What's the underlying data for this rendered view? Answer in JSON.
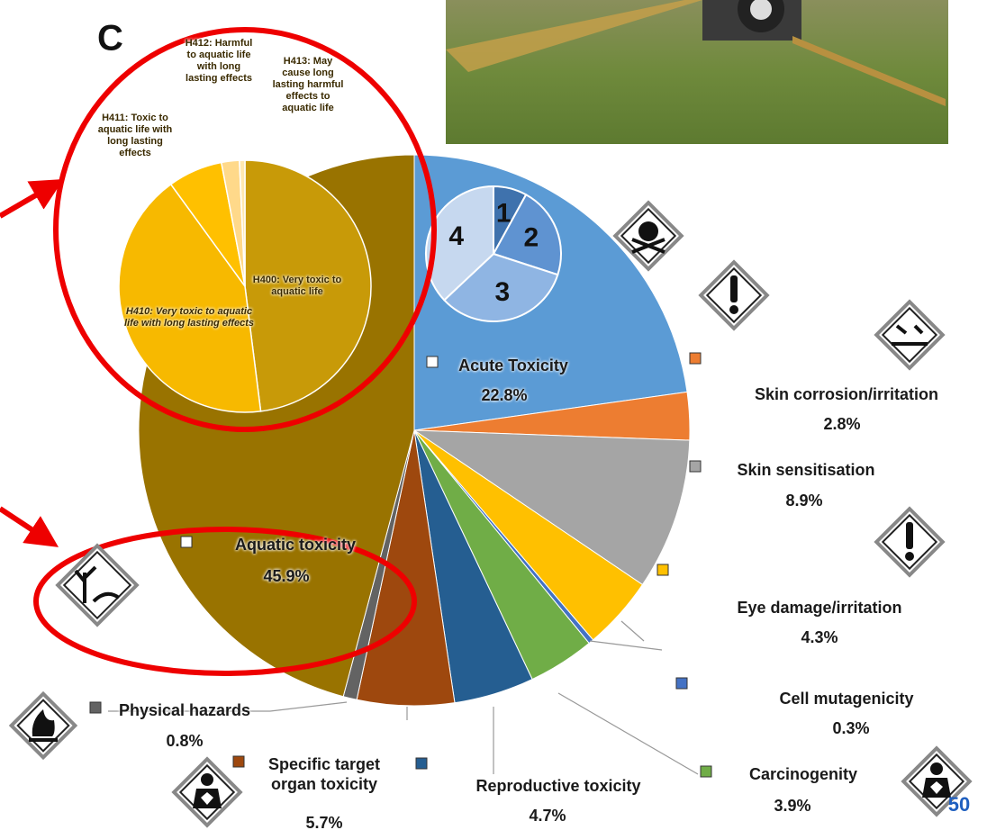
{
  "slide": {
    "heading_fragment": "C",
    "page_number": "50"
  },
  "chart_data": [
    {
      "type": "pie",
      "categories": [
        "Acute Toxicity",
        "Skin corrosion/irritation",
        "Skin sensitisation",
        "Eye damage/irritation",
        "Cell mutagenicity",
        "Carcinogenity",
        "Reproductive toxicity",
        "Specific target organ toxicity",
        "Physical hazards",
        "Aquatic toxicity"
      ],
      "values": [
        22.8,
        2.8,
        8.9,
        4.3,
        0.3,
        3.9,
        4.7,
        5.7,
        0.8,
        45.9
      ],
      "value_labels": [
        "22.8%",
        "2.8%",
        "8.9%",
        "4.3%",
        "0.3%",
        "3.9%",
        "4.7%",
        "5.7%",
        "0.8%",
        "45.9%"
      ],
      "colors": [
        "#5b9bd5",
        "#ed7d31",
        "#a5a5a5",
        "#ffc000",
        "#4472c4",
        "#70ad47",
        "#255e91",
        "#9e480e",
        "#636363",
        "#997300"
      ]
    },
    {
      "type": "pie",
      "categories": [
        "H400: Very toxic to aquatic life",
        "H410: Very toxic to aquatic life with long lasting effects",
        "H411: Toxic to aquatic life with long lasting effects",
        "H412: Harmful to aquatic life with long lasting effects",
        "H413: May cause long lasting harmful effects to aquatic life"
      ],
      "values": [
        48,
        42,
        7,
        2.3,
        0.7
      ],
      "colors": [
        "#c89a08",
        "#f7b900",
        "#ffc000",
        "#ffd98a",
        "#ffe8b0"
      ]
    },
    {
      "type": "pie",
      "categories": [
        "1",
        "2",
        "3",
        "4"
      ],
      "values": [
        8,
        22,
        33,
        37
      ],
      "colors": [
        "#3f72ad",
        "#5f93d1",
        "#8fb5e3",
        "#c6d8ef"
      ]
    }
  ]
}
